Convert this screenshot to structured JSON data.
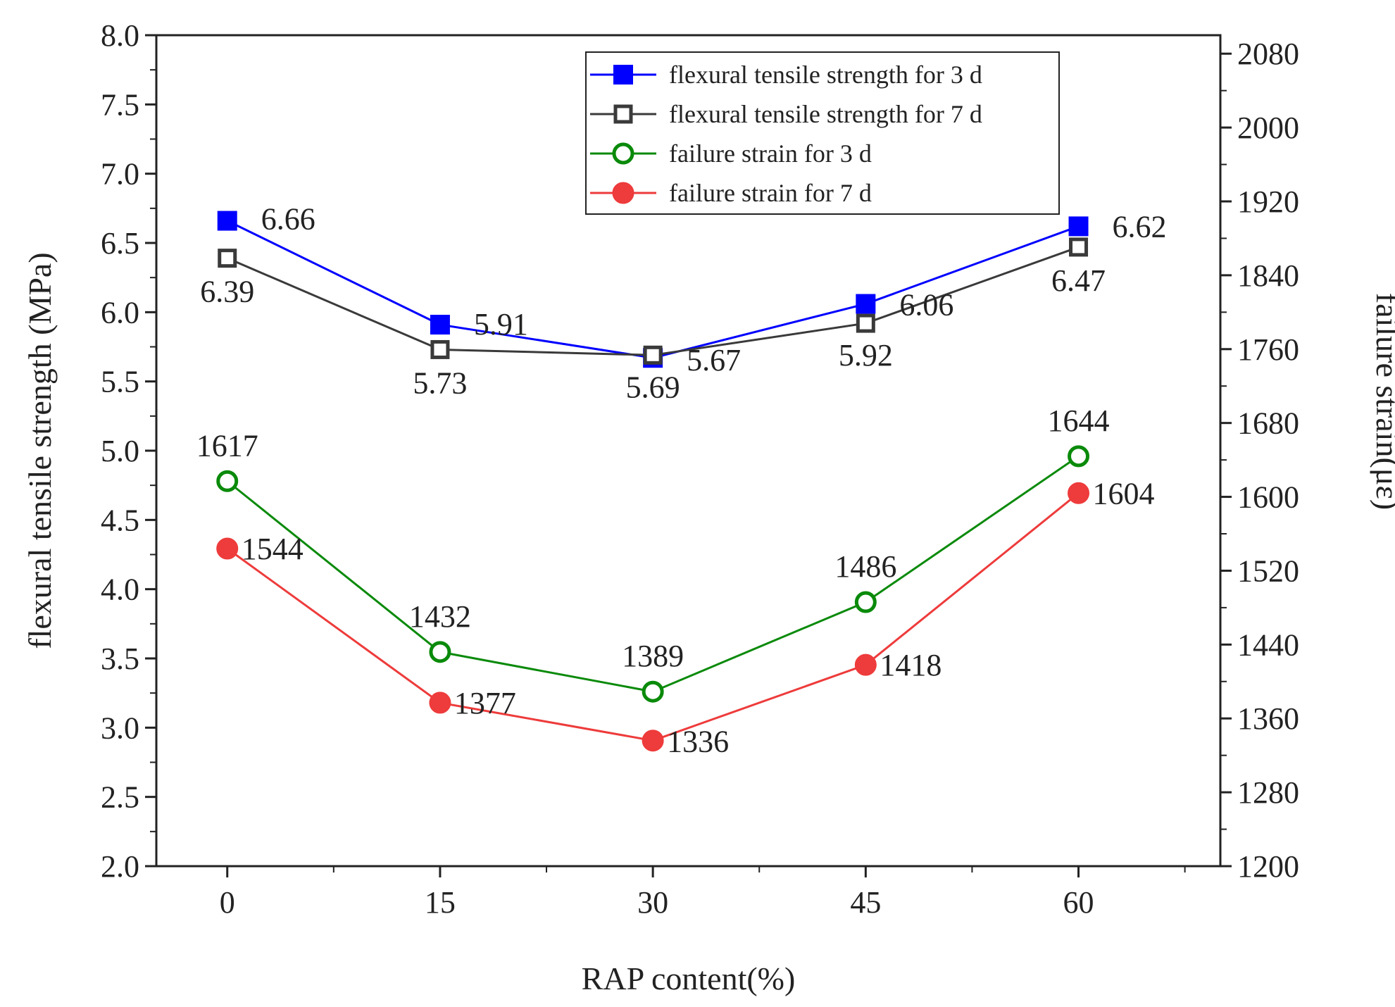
{
  "chart_data": {
    "type": "line",
    "x": [
      0,
      15,
      30,
      45,
      60
    ],
    "xlabel": "RAP content(%)",
    "ylabel": "flexural tensile strength (MPa)",
    "y2label": "failure strain(με)",
    "xlim": [
      -5,
      70
    ],
    "ylim": [
      2.0,
      8.0
    ],
    "y2lim": [
      1200,
      2100
    ],
    "x_ticks": [
      "0",
      "15",
      "30",
      "45",
      "60"
    ],
    "y_ticks": [
      "2.0",
      "2.5",
      "3.0",
      "3.5",
      "4.0",
      "4.5",
      "5.0",
      "5.5",
      "6.0",
      "6.5",
      "7.0",
      "7.5",
      "8.0"
    ],
    "y2_ticks": [
      "1200",
      "1280",
      "1360",
      "1440",
      "1520",
      "1600",
      "1680",
      "1760",
      "1840",
      "1920",
      "2000",
      "2080"
    ],
    "legend_position": "top-right",
    "series": [
      {
        "name": "flexural tensile strength for 3 d",
        "axis": "left",
        "marker": "square-filled",
        "color": "#0000ff",
        "values": [
          6.66,
          5.91,
          5.67,
          6.06,
          6.62
        ],
        "labels": [
          "6.66",
          "5.91",
          "5.67",
          "6.06",
          "6.62"
        ]
      },
      {
        "name": "flexural tensile strength for 7 d",
        "axis": "left",
        "marker": "square-open",
        "color": "#3a3a3a",
        "values": [
          6.39,
          5.73,
          5.69,
          5.92,
          6.47
        ],
        "labels": [
          "6.39",
          "5.73",
          "5.69",
          "5.92",
          "6.47"
        ]
      },
      {
        "name": "failure strain for 3 d",
        "axis": "right",
        "marker": "circle-open",
        "color": "#0a8a0a",
        "values": [
          1617,
          1432,
          1389,
          1486,
          1644
        ],
        "labels": [
          "1617",
          "1432",
          "1389",
          "1486",
          "1644"
        ]
      },
      {
        "name": "failure strain for 7 d",
        "axis": "right",
        "marker": "circle-filled",
        "color": "#ee3b3b",
        "values": [
          1544,
          1377,
          1336,
          1418,
          1604
        ],
        "labels": [
          "1544",
          "1377",
          "1336",
          "1418",
          "1604"
        ]
      }
    ]
  }
}
